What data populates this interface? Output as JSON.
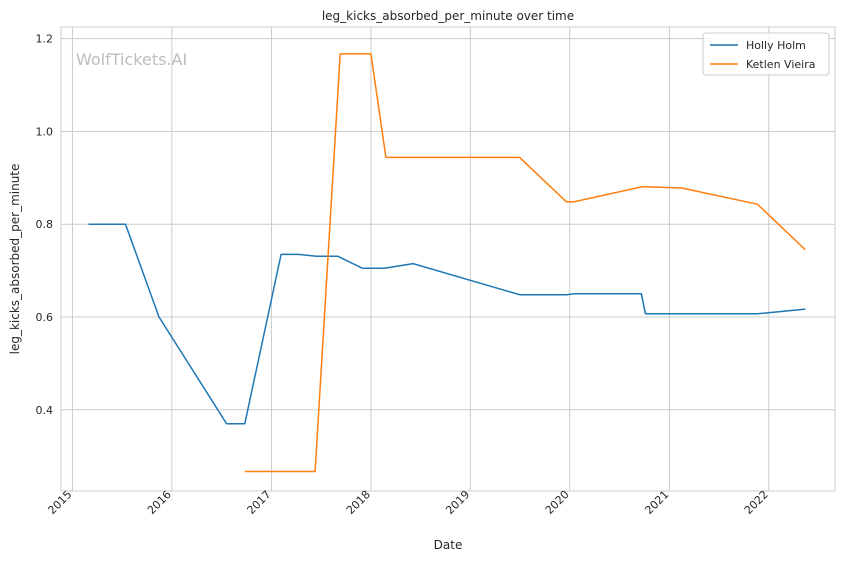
{
  "chart_data": {
    "type": "line",
    "title": "leg_kicks_absorbed_per_minute over time",
    "xlabel": "Date",
    "ylabel": "leg_kicks_absorbed_per_minute",
    "watermark": "WolfTickets.AI",
    "x_ticks": [
      "2015",
      "2016",
      "2017",
      "2018",
      "2019",
      "2020",
      "2021",
      "2022"
    ],
    "y_ticks": [
      "0.4",
      "0.6",
      "0.8",
      "1.0",
      "1.2"
    ],
    "xlim": [
      "2014-11-20",
      "2022-09-01"
    ],
    "ylim": [
      0.225,
      1.225
    ],
    "grid": true,
    "legend_position": "top-right",
    "series": [
      {
        "name": "Holly Holm",
        "color": "#1f77b4",
        "points": [
          [
            "2015-03-01",
            0.8
          ],
          [
            "2015-07-15",
            0.8
          ],
          [
            "2015-11-15",
            0.6
          ],
          [
            "2016-07-20",
            0.37
          ],
          [
            "2016-09-25",
            0.37
          ],
          [
            "2017-02-05",
            0.735
          ],
          [
            "2017-04-10",
            0.735
          ],
          [
            "2017-06-15",
            0.731
          ],
          [
            "2017-09-01",
            0.731
          ],
          [
            "2017-12-01",
            0.705
          ],
          [
            "2018-02-20",
            0.705
          ],
          [
            "2018-06-05",
            0.715
          ],
          [
            "2019-07-01",
            0.648
          ],
          [
            "2019-12-20",
            0.648
          ],
          [
            "2020-01-20",
            0.65
          ],
          [
            "2020-09-20",
            0.65
          ],
          [
            "2020-10-05",
            0.607
          ],
          [
            "2021-11-20",
            0.607
          ],
          [
            "2022-05-15",
            0.617
          ]
        ]
      },
      {
        "name": "Ketlen Vieira",
        "color": "#ff7f0e",
        "points": [
          [
            "2016-09-25",
            0.267
          ],
          [
            "2017-06-10",
            0.267
          ],
          [
            "2017-09-10",
            1.167
          ],
          [
            "2018-01-01",
            1.167
          ],
          [
            "2018-02-25",
            0.944
          ],
          [
            "2019-07-01",
            0.944
          ],
          [
            "2019-12-20",
            0.848
          ],
          [
            "2020-01-15",
            0.848
          ],
          [
            "2020-09-25",
            0.881
          ],
          [
            "2021-02-15",
            0.878
          ],
          [
            "2021-11-20",
            0.843
          ],
          [
            "2022-05-15",
            0.745
          ]
        ]
      }
    ]
  }
}
